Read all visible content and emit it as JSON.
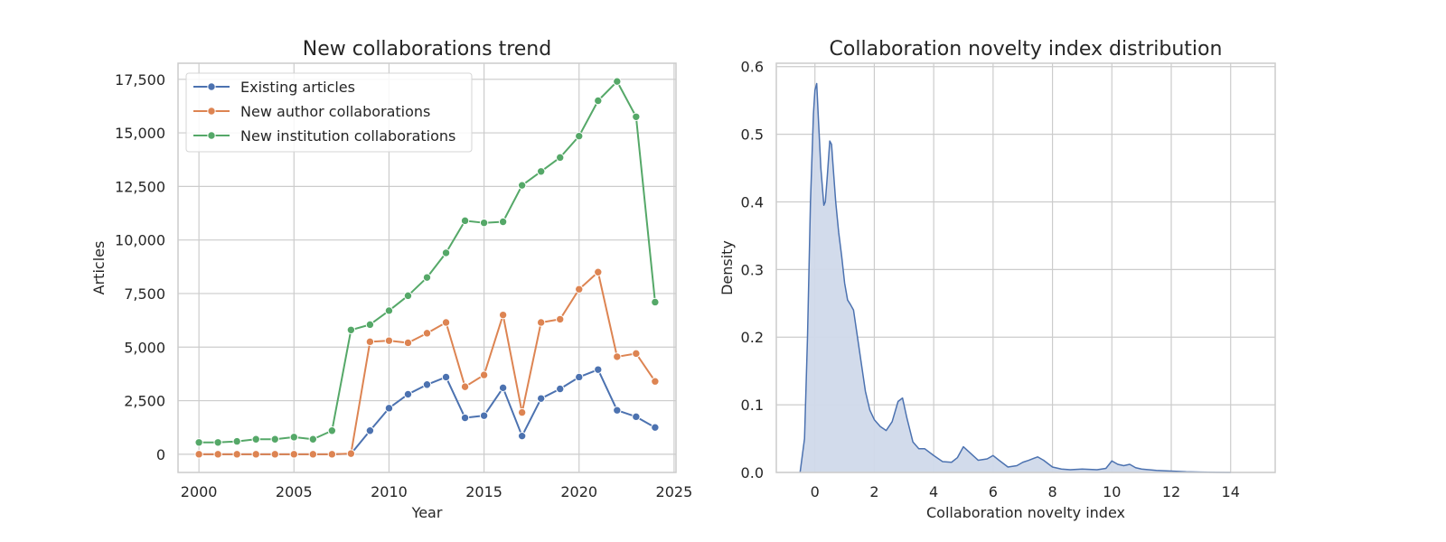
{
  "chart_data": [
    {
      "type": "line",
      "title": "New collaborations trend",
      "xlabel": "Year",
      "ylabel": "Articles",
      "xlim": [
        1998.9,
        2025.1
      ],
      "ylim": [
        -850,
        18250
      ],
      "grid": true,
      "legend": "top-left",
      "x_ticks": [
        2000,
        2005,
        2010,
        2015,
        2020,
        2025
      ],
      "x_tick_labels": [
        "2000",
        "2005",
        "2010",
        "2015",
        "2020",
        "2025"
      ],
      "y_ticks": [
        0,
        2500,
        5000,
        7500,
        10000,
        12500,
        15000,
        17500
      ],
      "y_tick_labels": [
        "0",
        "2,500",
        "5,000",
        "7,500",
        "10,000",
        "12,500",
        "15,000",
        "17,500"
      ],
      "x": [
        2000,
        2001,
        2002,
        2003,
        2004,
        2005,
        2006,
        2007,
        2008,
        2009,
        2010,
        2011,
        2012,
        2013,
        2014,
        2015,
        2016,
        2017,
        2018,
        2019,
        2020,
        2021,
        2022,
        2023,
        2024
      ],
      "series": [
        {
          "name": "Existing articles",
          "color": "#4c72b0",
          "values": [
            0,
            0,
            0,
            0,
            0,
            0,
            0,
            0,
            20,
            1100,
            2150,
            2800,
            3250,
            3600,
            1700,
            1800,
            3100,
            850,
            2600,
            3050,
            3600,
            3950,
            2050,
            1750,
            1250
          ]
        },
        {
          "name": "New author collaborations",
          "color": "#dd8452",
          "values": [
            0,
            0,
            0,
            0,
            0,
            0,
            0,
            0,
            30,
            5250,
            5300,
            5200,
            5650,
            6150,
            3150,
            3700,
            6500,
            1950,
            6150,
            6300,
            7700,
            8500,
            4550,
            4700,
            3400
          ]
        },
        {
          "name": "New institution collaborations",
          "color": "#55a868",
          "values": [
            550,
            550,
            600,
            700,
            700,
            800,
            700,
            1100,
            5800,
            6050,
            6700,
            7400,
            8250,
            9400,
            10900,
            10800,
            10850,
            12550,
            13200,
            13850,
            14850,
            16500,
            17400,
            15750,
            7100
          ]
        }
      ]
    },
    {
      "type": "area",
      "title": "Collaboration novelty index distribution",
      "xlabel": "Collaboration novelty index",
      "ylabel": "Density",
      "xlim": [
        -1.3,
        15.5
      ],
      "ylim": [
        0,
        0.605
      ],
      "grid": true,
      "x_ticks": [
        0,
        2,
        4,
        6,
        8,
        10,
        12,
        14
      ],
      "x_tick_labels": [
        "0",
        "2",
        "4",
        "6",
        "8",
        "10",
        "12",
        "14"
      ],
      "y_ticks": [
        0.0,
        0.1,
        0.2,
        0.3,
        0.4,
        0.5,
        0.6
      ],
      "y_tick_labels": [
        "0.0",
        "0.1",
        "0.2",
        "0.3",
        "0.4",
        "0.5",
        "0.6"
      ],
      "series": [
        {
          "color": "#4c72b0",
          "fill": "#d0d9ea",
          "x": [
            -0.5,
            -0.35,
            -0.25,
            -0.15,
            -0.05,
            0.0,
            0.06,
            0.12,
            0.2,
            0.3,
            0.35,
            0.42,
            0.5,
            0.56,
            0.6,
            0.7,
            0.8,
            0.9,
            1.0,
            1.1,
            1.2,
            1.3,
            1.4,
            1.55,
            1.7,
            1.85,
            2.0,
            2.2,
            2.4,
            2.6,
            2.8,
            2.95,
            3.1,
            3.3,
            3.5,
            3.7,
            4.0,
            4.3,
            4.6,
            4.8,
            5.0,
            5.2,
            5.5,
            5.8,
            6.0,
            6.2,
            6.5,
            6.8,
            7.0,
            7.2,
            7.5,
            7.7,
            8.0,
            8.3,
            8.6,
            9.0,
            9.5,
            9.8,
            10.0,
            10.2,
            10.4,
            10.6,
            10.8,
            11.0,
            11.5,
            12.0,
            12.5,
            13.0,
            13.5,
            14.0
          ],
          "y": [
            0.0,
            0.05,
            0.2,
            0.4,
            0.53,
            0.565,
            0.575,
            0.52,
            0.45,
            0.395,
            0.4,
            0.44,
            0.49,
            0.485,
            0.46,
            0.4,
            0.355,
            0.32,
            0.28,
            0.255,
            0.248,
            0.24,
            0.21,
            0.165,
            0.12,
            0.092,
            0.078,
            0.068,
            0.062,
            0.075,
            0.105,
            0.11,
            0.08,
            0.045,
            0.035,
            0.035,
            0.025,
            0.016,
            0.015,
            0.022,
            0.038,
            0.03,
            0.018,
            0.02,
            0.025,
            0.018,
            0.008,
            0.01,
            0.015,
            0.018,
            0.023,
            0.018,
            0.008,
            0.005,
            0.004,
            0.005,
            0.004,
            0.006,
            0.017,
            0.012,
            0.01,
            0.012,
            0.007,
            0.005,
            0.003,
            0.002,
            0.001,
            0.0005,
            0.0002,
            0.0
          ]
        }
      ]
    }
  ]
}
